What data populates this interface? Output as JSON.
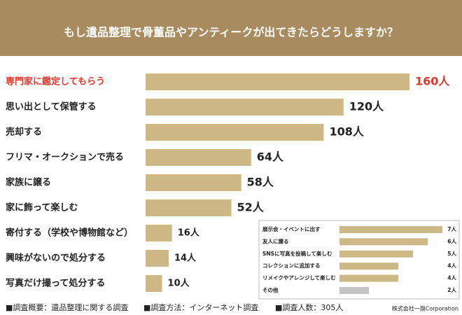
{
  "chart_data": [
    {
      "type": "bar",
      "orientation": "horizontal",
      "title": "もし遺品整理で骨董品やアンティークが出てきたらどうしますか？",
      "categories": [
        "専門家に鑑定してもらう",
        "思い出として保管する",
        "売却する",
        "フリマ・オークションで売る",
        "家族に譲る",
        "家に飾って楽しむ",
        "寄付する（学校や博物館など）",
        "興味がないので処分する",
        "写真だけ撮って処分する"
      ],
      "values": [
        160,
        120,
        108,
        64,
        58,
        52,
        16,
        14,
        10
      ],
      "value_labels": [
        "160人",
        "120人",
        "108人",
        "64人",
        "58人",
        "52人",
        "16人",
        "14人",
        "10人"
      ],
      "color": "#cdb886",
      "label_colors": [
        "#e0382b",
        "#222222",
        "#222222",
        "#222222",
        "#222222",
        "#222222",
        "#222222",
        "#222222",
        "#222222"
      ]
    },
    {
      "type": "bar",
      "orientation": "horizontal",
      "categories": [
        "展示会・イベントに出す",
        "友人に譲る",
        "SNSに写真を投稿して楽しむ",
        "コレクションに追加する",
        "リメイクやアレンジして楽しむ",
        "その他"
      ],
      "values": [
        7,
        6,
        5,
        4,
        4,
        2
      ],
      "value_labels": [
        "7人",
        "6人",
        "5人",
        "4人",
        "4人",
        "2人"
      ],
      "colors": [
        "#cdb886",
        "#cdb886",
        "#cdb886",
        "#cdb886",
        "#cdb886",
        "#c4c4c4"
      ]
    }
  ],
  "footer": {
    "items": [
      "■調査概要：遺品整理に関する調査",
      "■調査方法：インターネット調査",
      "■調査人数：305人"
    ],
    "credit": "株式会社一旗Corporation"
  }
}
